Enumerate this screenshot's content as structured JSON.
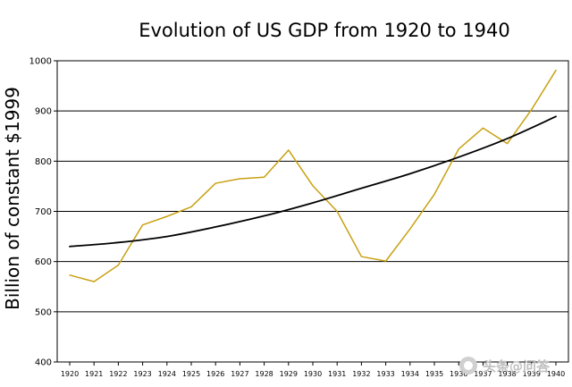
{
  "chart_data": {
    "type": "line",
    "title": "Evolution of US GDP from 1920 to 1940",
    "ylabel": "Billion of constant $1999",
    "xlabel": "",
    "ylim": [
      400,
      1000
    ],
    "yticks": [
      400,
      500,
      600,
      700,
      800,
      900,
      1000
    ],
    "grid": "horizontal",
    "series": [
      {
        "color": "#c8a012",
        "x": [
          1920,
          1921,
          1922,
          1923,
          1924,
          1925,
          1926,
          1927,
          1928,
          1929,
          1930,
          1931,
          1932,
          1933,
          1934,
          1935,
          1936,
          1937,
          1938,
          1939,
          1940
        ],
        "values": [
          573,
          560,
          593,
          673,
          690,
          709,
          756,
          765,
          768,
          822,
          751,
          700,
          610,
          601,
          665,
          734,
          824,
          866,
          835,
          903,
          981
        ]
      },
      {
        "color": "#000000",
        "x": [
          1920,
          1922,
          1924,
          1926,
          1928,
          1930,
          1932,
          1934,
          1936,
          1938,
          1940
        ],
        "values": [
          630,
          638,
          650,
          669,
          691,
          717,
          746,
          775,
          808,
          845,
          889
        ]
      }
    ],
    "watermark": "头条@问答"
  }
}
